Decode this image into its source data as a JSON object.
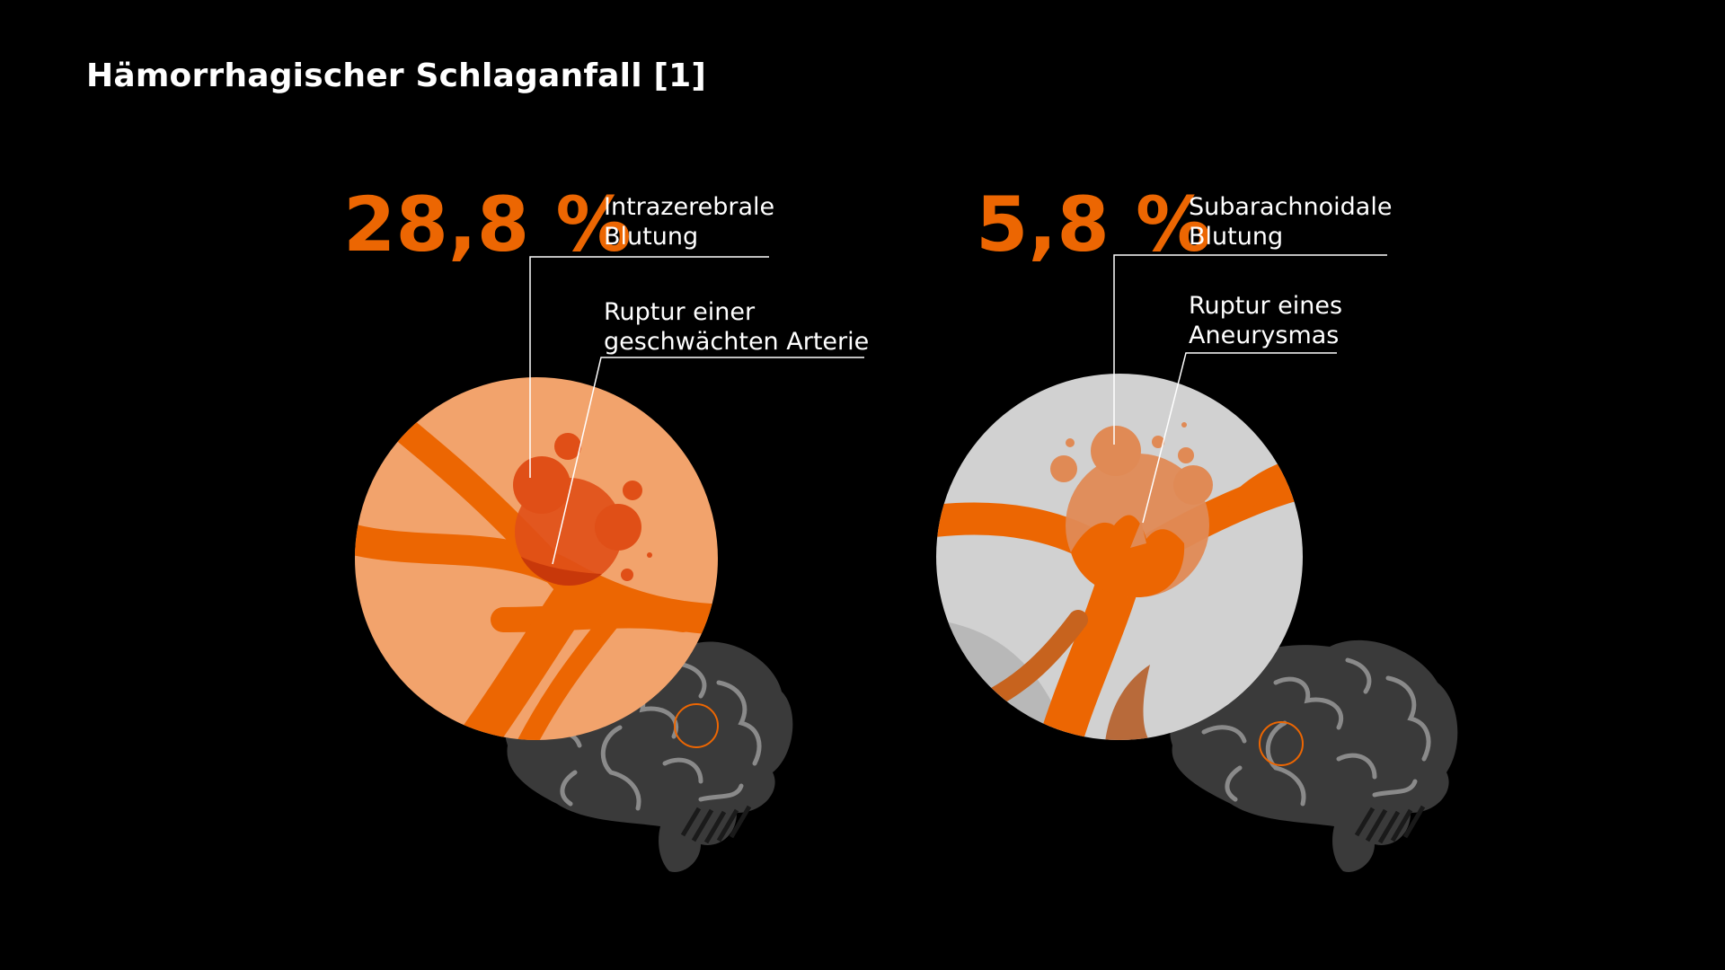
{
  "title": "Hämorrhagischer Schlaganfall [1]",
  "colors": {
    "background": "#000000",
    "accent_orange": "#ec6602",
    "light_orange": "#f2a36c",
    "blood_red": "#e04f17",
    "light_gray": "#d1d1d1",
    "brain_gray": "#3a3a3a",
    "brain_lines": "#8a8a8a",
    "text": "#ffffff"
  },
  "panels": [
    {
      "percentage": "28,8 %",
      "percentage_value": 28.8,
      "type_label": [
        "Intrazerebrale",
        "Blutung"
      ],
      "cause_label": [
        "Ruptur einer",
        "geschwächten Arterie"
      ]
    },
    {
      "percentage": "5,8 %",
      "percentage_value": 5.8,
      "type_label": [
        "Subarachnoidale",
        "Blutung"
      ],
      "cause_label": [
        "Ruptur eines",
        "Aneurysmas"
      ]
    }
  ]
}
